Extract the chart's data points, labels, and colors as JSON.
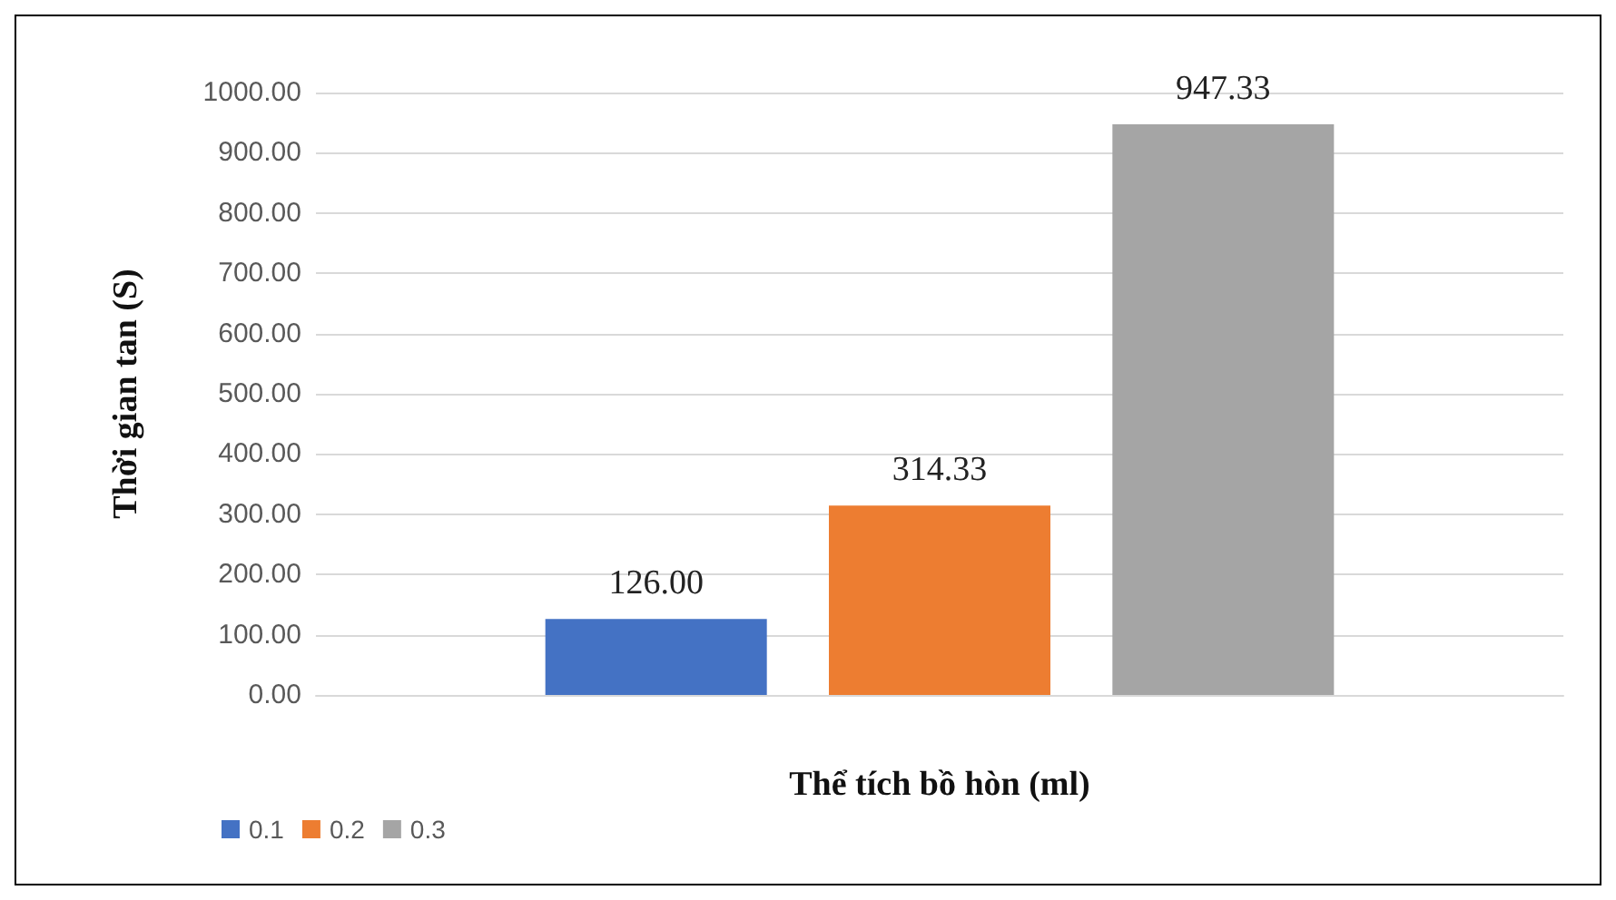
{
  "chart_data": {
    "type": "bar",
    "xlabel": "Thể tích bồ hòn (ml)",
    "ylabel": "Thời gian tan (S)",
    "categories": [
      null
    ],
    "series": [
      {
        "name": "0.1",
        "color": "#4472c4",
        "values": [
          126
        ],
        "value_labels": [
          "126.00"
        ]
      },
      {
        "name": "0.2",
        "color": "#ed7d31",
        "values": [
          314.33
        ],
        "value_labels": [
          "314.33"
        ]
      },
      {
        "name": "0.3",
        "color": "#a5a5a5",
        "values": [
          947.33
        ],
        "value_labels": [
          "947.33"
        ]
      }
    ],
    "ylim": [
      0,
      1000
    ],
    "yticks": [
      {
        "value": 0,
        "label": "0.00"
      },
      {
        "value": 100,
        "label": "100.00"
      },
      {
        "value": 200,
        "label": "200.00"
      },
      {
        "value": 300,
        "label": "300.00"
      },
      {
        "value": 400,
        "label": "400.00"
      },
      {
        "value": 500,
        "label": "500.00"
      },
      {
        "value": 600,
        "label": "600.00"
      },
      {
        "value": 700,
        "label": "700.00"
      },
      {
        "value": 800,
        "label": "800.00"
      },
      {
        "value": 900,
        "label": "900.00"
      },
      {
        "value": 1000,
        "label": "1000.00"
      }
    ],
    "grid": true,
    "legend": "bottom left"
  }
}
